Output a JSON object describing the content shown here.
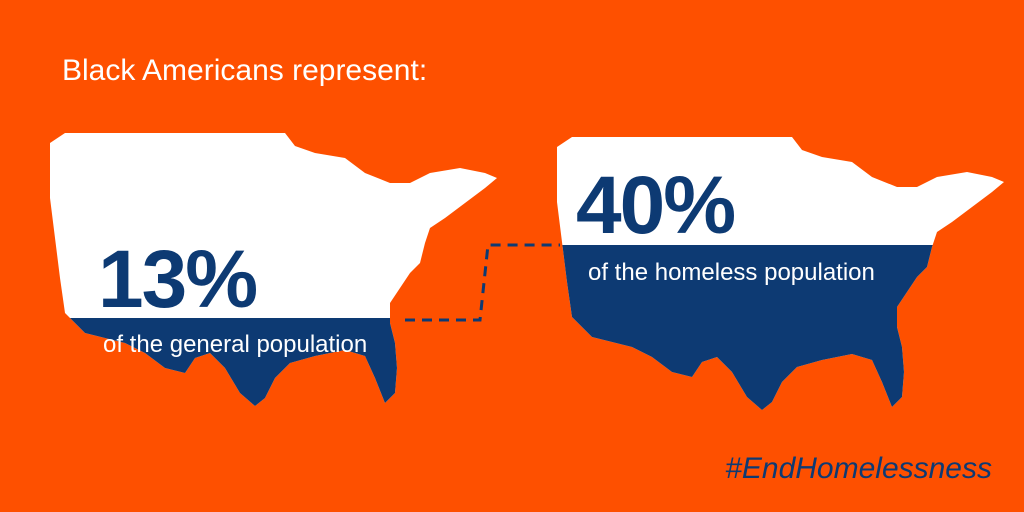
{
  "title": "Black Americans represent:",
  "items": [
    {
      "value_label": "13%",
      "caption": "of the general population"
    },
    {
      "value_label": "40%",
      "caption": "of the homeless population"
    }
  ],
  "hashtag": "#EndHomelessness"
}
